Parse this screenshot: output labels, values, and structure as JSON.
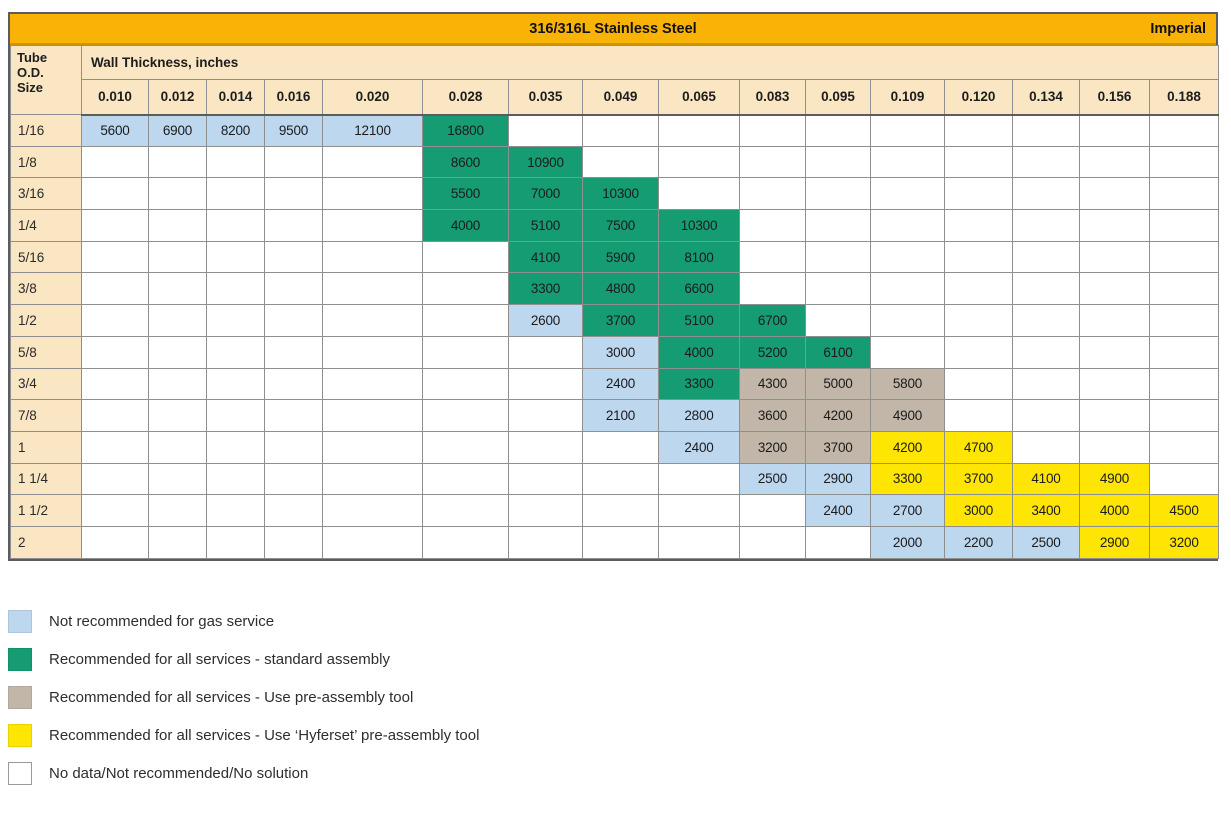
{
  "chart_data": {
    "type": "table",
    "title": "316/316L Stainless Steel",
    "units_label": "Imperial",
    "row_header": "Tube\nO.D.\nSize",
    "column_group_label": "Wall Thickness, inches",
    "columns": [
      "0.010",
      "0.012",
      "0.014",
      "0.016",
      "0.020",
      "0.028",
      "0.035",
      "0.049",
      "0.065",
      "0.083",
      "0.095",
      "0.109",
      "0.120",
      "0.134",
      "0.156",
      "0.188"
    ],
    "rows": [
      {
        "size": "1/16",
        "cells": [
          {
            "v": "5600",
            "s": "gas"
          },
          {
            "v": "6900",
            "s": "gas"
          },
          {
            "v": "8200",
            "s": "gas"
          },
          {
            "v": "9500",
            "s": "gas"
          },
          {
            "v": "12100",
            "s": "gas"
          },
          {
            "v": "16800",
            "s": "std"
          },
          null,
          null,
          null,
          null,
          null,
          null,
          null,
          null,
          null,
          null
        ]
      },
      {
        "size": "1/8",
        "cells": [
          null,
          null,
          null,
          null,
          null,
          {
            "v": "8600",
            "s": "std"
          },
          {
            "v": "10900",
            "s": "std"
          },
          null,
          null,
          null,
          null,
          null,
          null,
          null,
          null,
          null
        ]
      },
      {
        "size": "3/16",
        "cells": [
          null,
          null,
          null,
          null,
          null,
          {
            "v": "5500",
            "s": "std"
          },
          {
            "v": "7000",
            "s": "std"
          },
          {
            "v": "10300",
            "s": "std"
          },
          null,
          null,
          null,
          null,
          null,
          null,
          null,
          null
        ]
      },
      {
        "size": "1/4",
        "cells": [
          null,
          null,
          null,
          null,
          null,
          {
            "v": "4000",
            "s": "std"
          },
          {
            "v": "5100",
            "s": "std"
          },
          {
            "v": "7500",
            "s": "std"
          },
          {
            "v": "10300",
            "s": "std"
          },
          null,
          null,
          null,
          null,
          null,
          null,
          null
        ]
      },
      {
        "size": "5/16",
        "cells": [
          null,
          null,
          null,
          null,
          null,
          null,
          {
            "v": "4100",
            "s": "std"
          },
          {
            "v": "5900",
            "s": "std"
          },
          {
            "v": "8100",
            "s": "std"
          },
          null,
          null,
          null,
          null,
          null,
          null,
          null
        ]
      },
      {
        "size": "3/8",
        "cells": [
          null,
          null,
          null,
          null,
          null,
          null,
          {
            "v": "3300",
            "s": "std"
          },
          {
            "v": "4800",
            "s": "std"
          },
          {
            "v": "6600",
            "s": "std"
          },
          null,
          null,
          null,
          null,
          null,
          null,
          null
        ]
      },
      {
        "size": "1/2",
        "cells": [
          null,
          null,
          null,
          null,
          null,
          null,
          {
            "v": "2600",
            "s": "gas"
          },
          {
            "v": "3700",
            "s": "std"
          },
          {
            "v": "5100",
            "s": "std"
          },
          {
            "v": "6700",
            "s": "std"
          },
          null,
          null,
          null,
          null,
          null,
          null
        ]
      },
      {
        "size": "5/8",
        "cells": [
          null,
          null,
          null,
          null,
          null,
          null,
          null,
          {
            "v": "3000",
            "s": "gas"
          },
          {
            "v": "4000",
            "s": "std"
          },
          {
            "v": "5200",
            "s": "std"
          },
          {
            "v": "6100",
            "s": "std"
          },
          null,
          null,
          null,
          null,
          null
        ]
      },
      {
        "size": "3/4",
        "cells": [
          null,
          null,
          null,
          null,
          null,
          null,
          null,
          {
            "v": "2400",
            "s": "gas"
          },
          {
            "v": "3300",
            "s": "std"
          },
          {
            "v": "4300",
            "s": "pre"
          },
          {
            "v": "5000",
            "s": "pre"
          },
          {
            "v": "5800",
            "s": "pre"
          },
          null,
          null,
          null,
          null
        ]
      },
      {
        "size": "7/8",
        "cells": [
          null,
          null,
          null,
          null,
          null,
          null,
          null,
          {
            "v": "2100",
            "s": "gas"
          },
          {
            "v": "2800",
            "s": "gas"
          },
          {
            "v": "3600",
            "s": "pre"
          },
          {
            "v": "4200",
            "s": "pre"
          },
          {
            "v": "4900",
            "s": "pre"
          },
          null,
          null,
          null,
          null
        ]
      },
      {
        "size": "1",
        "cells": [
          null,
          null,
          null,
          null,
          null,
          null,
          null,
          null,
          {
            "v": "2400",
            "s": "gas"
          },
          {
            "v": "3200",
            "s": "pre"
          },
          {
            "v": "3700",
            "s": "pre"
          },
          {
            "v": "4200",
            "s": "hyf"
          },
          {
            "v": "4700",
            "s": "hyf"
          },
          null,
          null,
          null
        ]
      },
      {
        "size": "1 1/4",
        "cells": [
          null,
          null,
          null,
          null,
          null,
          null,
          null,
          null,
          null,
          {
            "v": "2500",
            "s": "gas"
          },
          {
            "v": "2900",
            "s": "gas"
          },
          {
            "v": "3300",
            "s": "hyf"
          },
          {
            "v": "3700",
            "s": "hyf"
          },
          {
            "v": "4100",
            "s": "hyf"
          },
          {
            "v": "4900",
            "s": "hyf"
          },
          null
        ]
      },
      {
        "size": "1 1/2",
        "cells": [
          null,
          null,
          null,
          null,
          null,
          null,
          null,
          null,
          null,
          null,
          {
            "v": "2400",
            "s": "gas"
          },
          {
            "v": "2700",
            "s": "gas"
          },
          {
            "v": "3000",
            "s": "hyf"
          },
          {
            "v": "3400",
            "s": "hyf"
          },
          {
            "v": "4000",
            "s": "hyf"
          },
          {
            "v": "4500",
            "s": "hyf"
          }
        ]
      },
      {
        "size": "2",
        "cells": [
          null,
          null,
          null,
          null,
          null,
          null,
          null,
          null,
          null,
          null,
          null,
          {
            "v": "2000",
            "s": "gas"
          },
          {
            "v": "2200",
            "s": "gas"
          },
          {
            "v": "2500",
            "s": "gas"
          },
          {
            "v": "2900",
            "s": "hyf"
          },
          {
            "v": "3200",
            "s": "hyf"
          }
        ]
      }
    ]
  },
  "legend": [
    {
      "s": "gas",
      "label": "Not recommended for gas service"
    },
    {
      "s": "std",
      "label": "Recommended for all services - standard assembly"
    },
    {
      "s": "pre",
      "label": "Recommended for all services -  Use pre-assembly tool"
    },
    {
      "s": "hyf",
      "label": "Recommended for all services - Use ‘Hyferset’ pre-assembly tool"
    },
    {
      "s": "empty",
      "label": "No data/Not recommended/No solution"
    }
  ],
  "colors": {
    "header_orange": "#F9B206",
    "header_cream": "#FAE6C3",
    "gas": "#BDD7EF",
    "std": "#169C72",
    "pre": "#C2B6A8",
    "hyf": "#FFE503",
    "empty": "#FFFFFF",
    "grid_line": "#8F8F8F"
  }
}
